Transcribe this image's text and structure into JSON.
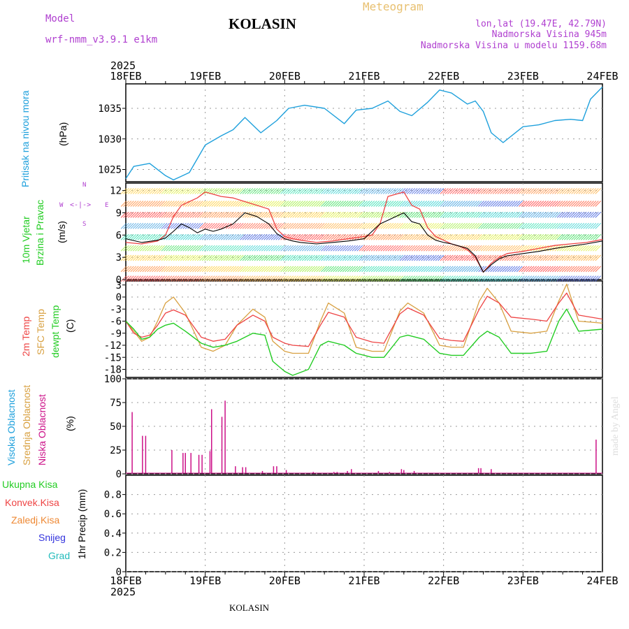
{
  "header": {
    "model_label": "Model",
    "model_value": "wrf-nmm_v3.9.1  e1km",
    "station": "KOLASIN",
    "meteogram": "Meteogram",
    "lonlat": "lon,lat (19.47E, 42.79N)",
    "altitude": "Nadmorska Visina 945m",
    "model_altitude": "Nadmorska Visina u modelu 1159.68m",
    "footer_station": "KOLASIN",
    "credit": "made by Angel",
    "year_top": "2025",
    "year_bottom": "2025"
  },
  "colors": {
    "pressure": "#1ea0dc",
    "temp2m": "#ee4444",
    "sfc": "#d8a040",
    "dew": "#22cc22",
    "cloud": "#cc1188",
    "wind_speed": "#000000",
    "gust": "#ee4444",
    "purple_label": "#b040d0"
  },
  "x_axis": {
    "ticks": [
      "18FEB",
      "19FEB",
      "20FEB",
      "21FEB",
      "22FEB",
      "23FEB",
      "24FEB"
    ],
    "range_days": [
      0,
      6
    ]
  },
  "panels": {
    "pressure": {
      "labels": [
        "Pritisak na nivou mora"
      ],
      "unit": "(hPa)"
    },
    "wind": {
      "labels": [
        "10m Vjetar",
        "Brzina i Pravac"
      ],
      "unit": "(m/s)",
      "compass": {
        "n": "N",
        "s": "S",
        "w": "W",
        "e": "E"
      }
    },
    "temp": {
      "labels": [
        "2m Temp",
        "SFC Temp",
        "dewpt Temp"
      ],
      "unit": "(C)"
    },
    "cloud": {
      "labels": [
        "Visoka Oblacnost",
        "Srednja Oblacnost",
        "Niska Oblacnost"
      ],
      "unit": "(%)"
    },
    "precip": {
      "labels": [
        "Ukupna Kisa",
        "Konvek.Kisa",
        "Zaledj.Kisa",
        "Snijeg",
        "Grad"
      ],
      "unit": "1hr Precip (mm)"
    }
  },
  "chart_data": [
    {
      "type": "line",
      "ylabel": "(hPa)",
      "ylim": [
        1023,
        1039
      ],
      "yticks": [
        1025,
        1030,
        1035
      ],
      "grid": true,
      "series": [
        {
          "name": "Pritisak na nivou mora",
          "x": [
            0,
            0.1,
            0.3,
            0.5,
            0.6,
            0.8,
            1.0,
            1.2,
            1.35,
            1.5,
            1.7,
            1.9,
            2.05,
            2.25,
            2.5,
            2.75,
            2.9,
            3.1,
            3.3,
            3.45,
            3.6,
            3.8,
            3.95,
            4.1,
            4.3,
            4.4,
            4.5,
            4.6,
            4.75,
            5.0,
            5.2,
            5.4,
            5.6,
            5.75,
            5.85,
            6.0
          ],
          "y": [
            1023.5,
            1025.5,
            1026,
            1024,
            1023.3,
            1024.5,
            1029,
            1030.5,
            1031.5,
            1033.5,
            1031,
            1033,
            1035,
            1035.5,
            1035,
            1032.5,
            1034.7,
            1035,
            1036.2,
            1034.5,
            1033.8,
            1036,
            1038,
            1037.5,
            1035.7,
            1036.2,
            1034.5,
            1031,
            1029.4,
            1032,
            1032.3,
            1033,
            1033.2,
            1033,
            1036.5,
            1038.5
          ]
        }
      ]
    },
    {
      "type": "line",
      "ylabel": "(m/s)",
      "ylim": [
        0,
        13
      ],
      "yticks": [
        0,
        3,
        6,
        9,
        12
      ],
      "grid": true,
      "series": [
        {
          "name": "speed",
          "x": [
            0,
            0.2,
            0.4,
            0.5,
            0.6,
            0.7,
            0.8,
            0.9,
            1.0,
            1.1,
            1.2,
            1.35,
            1.5,
            1.65,
            1.8,
            1.9,
            2.0,
            2.1,
            2.2,
            2.4,
            2.6,
            2.8,
            3.0,
            3.1,
            3.2,
            3.3,
            3.4,
            3.5,
            3.6,
            3.7,
            3.8,
            3.9,
            4.0,
            4.1,
            4.2,
            4.3,
            4.4,
            4.5,
            4.6,
            4.7,
            4.8,
            5.0,
            5.2,
            5.4,
            5.6,
            5.8,
            6.0
          ],
          "y": [
            5.5,
            5,
            5.3,
            5.6,
            6.5,
            7.5,
            7,
            6.3,
            6.8,
            6.5,
            6.8,
            7.5,
            9,
            8.5,
            7.5,
            6.2,
            5.5,
            5.2,
            5.0,
            4.8,
            5.0,
            5.2,
            5.5,
            6.5,
            7.5,
            8.0,
            8.5,
            9,
            7.8,
            7.5,
            6,
            5.3,
            5.0,
            4.8,
            4.5,
            4.2,
            3.2,
            1.0,
            2.0,
            2.8,
            3.2,
            3.5,
            3.8,
            4.2,
            4.5,
            4.8,
            5.2
          ]
        },
        {
          "name": "gust",
          "x": [
            0,
            0.2,
            0.4,
            0.5,
            0.6,
            0.7,
            0.8,
            0.9,
            1.0,
            1.1,
            1.2,
            1.35,
            1.5,
            1.65,
            1.8,
            1.9,
            2.0,
            2.1,
            2.2,
            2.4,
            2.6,
            2.8,
            3.0,
            3.1,
            3.2,
            3.3,
            3.4,
            3.5,
            3.6,
            3.7,
            3.8,
            3.9,
            4.0,
            4.1,
            4.2,
            4.3,
            4.4,
            4.5,
            4.6,
            4.7,
            4.8,
            5.0,
            5.2,
            5.4,
            5.6,
            5.8,
            6.0
          ],
          "y": [
            5,
            4.8,
            5.2,
            6,
            8.5,
            10,
            10.5,
            11,
            11.8,
            11.5,
            11.2,
            11,
            10.5,
            10,
            9.5,
            6.8,
            5.8,
            5.5,
            5.3,
            5.0,
            5.2,
            5.5,
            5.8,
            6,
            7.5,
            11.2,
            11.5,
            11.8,
            10,
            9.5,
            7,
            5.8,
            5.3,
            4.8,
            4.5,
            4.0,
            3.0,
            1.0,
            2.2,
            3.0,
            3.5,
            3.8,
            4.2,
            4.6,
            4.8,
            5.0,
            5.4
          ]
        }
      ]
    },
    {
      "type": "line",
      "ylabel": "(C)",
      "ylim": [
        -20,
        4
      ],
      "yticks": [
        -18,
        -15,
        -12,
        -9,
        -6,
        -3,
        0,
        3
      ],
      "grid": true,
      "series": [
        {
          "name": "2m Temp",
          "x": [
            0,
            0.1,
            0.2,
            0.3,
            0.4,
            0.5,
            0.6,
            0.75,
            0.95,
            1.1,
            1.25,
            1.4,
            1.6,
            1.75,
            1.85,
            2.0,
            2.1,
            2.3,
            2.45,
            2.55,
            2.75,
            2.9,
            3.1,
            3.25,
            3.45,
            3.55,
            3.75,
            3.95,
            4.1,
            4.25,
            4.45,
            4.55,
            4.7,
            4.85,
            5.1,
            5.3,
            5.45,
            5.55,
            5.7,
            6.0
          ],
          "y": [
            -6,
            -9,
            -10,
            -9.5,
            -7,
            -4,
            -3.2,
            -4.5,
            -10,
            -11,
            -10.5,
            -7,
            -4.5,
            -6,
            -10,
            -11.5,
            -12,
            -12.3,
            -7,
            -3.8,
            -5,
            -10,
            -11.2,
            -11.5,
            -4.2,
            -2.7,
            -4.5,
            -10.3,
            -10.8,
            -11,
            -3,
            0.2,
            -1.5,
            -5,
            -5.5,
            -6,
            -1.5,
            1.0,
            -4.5,
            -5.5
          ]
        },
        {
          "name": "SFC Temp",
          "x": [
            0,
            0.1,
            0.2,
            0.3,
            0.4,
            0.5,
            0.6,
            0.75,
            0.95,
            1.1,
            1.25,
            1.4,
            1.6,
            1.75,
            1.85,
            2.0,
            2.1,
            2.3,
            2.45,
            2.55,
            2.75,
            2.9,
            3.1,
            3.25,
            3.45,
            3.55,
            3.75,
            3.95,
            4.1,
            4.25,
            4.45,
            4.55,
            4.7,
            4.85,
            5.1,
            5.3,
            5.45,
            5.55,
            5.7,
            6.0
          ],
          "y": [
            -6,
            -8.5,
            -11,
            -10,
            -6,
            -1.5,
            0,
            -4,
            -12.5,
            -13.5,
            -12,
            -7,
            -3,
            -5,
            -11,
            -13.5,
            -14,
            -14,
            -6,
            -1.5,
            -4,
            -12.5,
            -13.5,
            -13.5,
            -3.5,
            -1.5,
            -4,
            -12,
            -12.5,
            -12.5,
            -1,
            2.2,
            -1.5,
            -8.5,
            -9,
            -8.5,
            -1,
            3.2,
            -6,
            -6.5
          ]
        },
        {
          "name": "dewpt Temp",
          "x": [
            0,
            0.1,
            0.2,
            0.3,
            0.4,
            0.5,
            0.6,
            0.75,
            0.95,
            1.1,
            1.25,
            1.4,
            1.6,
            1.75,
            1.85,
            2.0,
            2.1,
            2.3,
            2.45,
            2.55,
            2.75,
            2.9,
            3.1,
            3.25,
            3.45,
            3.55,
            3.75,
            3.95,
            4.1,
            4.25,
            4.45,
            4.55,
            4.7,
            4.85,
            5.1,
            5.3,
            5.45,
            5.55,
            5.7,
            6.0
          ],
          "y": [
            -6,
            -8,
            -10.5,
            -10,
            -8,
            -7,
            -6.5,
            -8.5,
            -11.5,
            -12.5,
            -12,
            -11,
            -9,
            -9.5,
            -16,
            -18.5,
            -19.5,
            -18,
            -12,
            -11,
            -12,
            -14,
            -15,
            -15,
            -10,
            -9.5,
            -10.5,
            -14,
            -14.5,
            -14.5,
            -10,
            -8.5,
            -10,
            -14,
            -14,
            -13.5,
            -6,
            -3,
            -8.5,
            -8
          ]
        }
      ]
    },
    {
      "type": "bar",
      "ylabel": "(%)",
      "ylim": [
        0,
        100
      ],
      "yticks": [
        0,
        25,
        50,
        75,
        100
      ],
      "grid": true,
      "series": [
        {
          "name": "Niska Oblacnost",
          "x": [
            0.08,
            0.21,
            0.25,
            0.58,
            0.72,
            0.75,
            0.82,
            0.92,
            0.96,
            1.06,
            1.08,
            1.21,
            1.25,
            1.38,
            1.47,
            1.51,
            1.72,
            1.86,
            1.9,
            2.02,
            2.36,
            2.62,
            2.66,
            2.79,
            2.84,
            3.18,
            3.32,
            3.47,
            3.5,
            3.63,
            4.44,
            4.47,
            4.6,
            5.92
          ],
          "y": [
            65,
            40,
            40,
            25,
            22,
            22,
            22,
            20,
            20,
            24,
            68,
            60,
            77,
            8,
            7,
            7,
            3,
            8,
            8,
            4,
            2,
            2,
            2,
            3,
            5,
            3,
            2,
            5,
            4,
            3,
            6,
            6,
            5,
            36
          ]
        }
      ]
    },
    {
      "type": "line",
      "ylabel": "1hr Precip (mm)",
      "ylim": [
        0,
        1.0
      ],
      "yticks": [
        0,
        0.2,
        0.4,
        0.6,
        0.8
      ],
      "grid": true,
      "series": []
    }
  ]
}
